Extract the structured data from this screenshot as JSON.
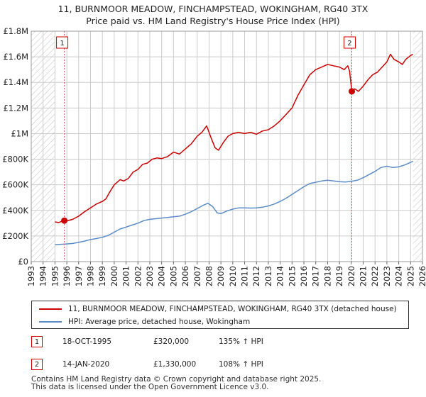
{
  "title_line1": "11, BURNMOOR MEADOW, FINCHAMPSTEAD, WOKINGHAM, RG40 3TX",
  "title_line2": "Price paid vs. HM Land Registry's House Price Index (HPI)",
  "colors": {
    "property": "#cc0000",
    "hpi": "#5b8cc8",
    "grid": "#cccccc",
    "hatch": "#c8c8c8",
    "marker_line": "#e06060"
  },
  "chart_data": {
    "type": "line",
    "title": "11, BURNMOOR MEADOW, FINCHAMPSTEAD, WOKINGHAM, RG40 3TX — Price paid vs. HM Land Registry's House Price Index (HPI)",
    "xlim": [
      1993,
      2026
    ],
    "ylim": [
      0,
      1800000
    ],
    "y_ticks": [
      {
        "v": 0,
        "label": "£0"
      },
      {
        "v": 200000,
        "label": "£200K"
      },
      {
        "v": 400000,
        "label": "£400K"
      },
      {
        "v": 600000,
        "label": "£600K"
      },
      {
        "v": 800000,
        "label": "£800K"
      },
      {
        "v": 1000000,
        "label": "£1M"
      },
      {
        "v": 1200000,
        "label": "£1.2M"
      },
      {
        "v": 1400000,
        "label": "£1.4M"
      },
      {
        "v": 1600000,
        "label": "£1.6M"
      },
      {
        "v": 1800000,
        "label": "£1.8M"
      }
    ],
    "x_ticks": [
      1993,
      1994,
      1995,
      1996,
      1997,
      1998,
      1999,
      2000,
      2001,
      2002,
      2003,
      2004,
      2005,
      2006,
      2007,
      2008,
      2009,
      2010,
      2011,
      2012,
      2013,
      2014,
      2015,
      2016,
      2017,
      2018,
      2019,
      2020,
      2021,
      2022,
      2023,
      2024,
      2025,
      2026
    ],
    "data_range": [
      1995.0,
      2025.2
    ],
    "series": [
      {
        "name": "11, BURNMOOR MEADOW, FINCHAMPSTEAD, WOKINGHAM, RG40 3TX (detached house)",
        "color": "#cc0000",
        "points": [
          [
            1995.0,
            310000
          ],
          [
            1995.3,
            305000
          ],
          [
            1995.6,
            315000
          ],
          [
            1995.79,
            320000
          ],
          [
            1996.0,
            318000
          ],
          [
            1996.5,
            330000
          ],
          [
            1997.0,
            355000
          ],
          [
            1997.5,
            390000
          ],
          [
            1998.0,
            420000
          ],
          [
            1998.5,
            450000
          ],
          [
            1999.0,
            470000
          ],
          [
            1999.3,
            490000
          ],
          [
            1999.6,
            540000
          ],
          [
            2000.0,
            600000
          ],
          [
            2000.5,
            640000
          ],
          [
            2000.8,
            630000
          ],
          [
            2001.2,
            650000
          ],
          [
            2001.6,
            700000
          ],
          [
            2002.0,
            720000
          ],
          [
            2002.4,
            760000
          ],
          [
            2002.8,
            770000
          ],
          [
            2003.2,
            800000
          ],
          [
            2003.6,
            810000
          ],
          [
            2004.0,
            805000
          ],
          [
            2004.5,
            820000
          ],
          [
            2005.0,
            855000
          ],
          [
            2005.5,
            840000
          ],
          [
            2006.0,
            880000
          ],
          [
            2006.5,
            920000
          ],
          [
            2007.0,
            980000
          ],
          [
            2007.4,
            1010000
          ],
          [
            2007.8,
            1060000
          ],
          [
            2008.2,
            960000
          ],
          [
            2008.5,
            890000
          ],
          [
            2008.8,
            870000
          ],
          [
            2009.2,
            930000
          ],
          [
            2009.6,
            980000
          ],
          [
            2010.0,
            1000000
          ],
          [
            2010.5,
            1010000
          ],
          [
            2011.0,
            1000000
          ],
          [
            2011.5,
            1010000
          ],
          [
            2012.0,
            995000
          ],
          [
            2012.5,
            1020000
          ],
          [
            2013.0,
            1030000
          ],
          [
            2013.5,
            1060000
          ],
          [
            2014.0,
            1100000
          ],
          [
            2014.5,
            1150000
          ],
          [
            2015.0,
            1200000
          ],
          [
            2015.5,
            1300000
          ],
          [
            2016.0,
            1380000
          ],
          [
            2016.5,
            1460000
          ],
          [
            2017.0,
            1500000
          ],
          [
            2017.5,
            1520000
          ],
          [
            2018.0,
            1540000
          ],
          [
            2018.5,
            1530000
          ],
          [
            2019.0,
            1520000
          ],
          [
            2019.4,
            1500000
          ],
          [
            2019.7,
            1530000
          ],
          [
            2019.85,
            1490000
          ],
          [
            2020.04,
            1330000
          ],
          [
            2020.3,
            1350000
          ],
          [
            2020.6,
            1330000
          ],
          [
            2021.0,
            1370000
          ],
          [
            2021.4,
            1420000
          ],
          [
            2021.8,
            1460000
          ],
          [
            2022.2,
            1480000
          ],
          [
            2022.6,
            1520000
          ],
          [
            2023.0,
            1560000
          ],
          [
            2023.3,
            1620000
          ],
          [
            2023.6,
            1580000
          ],
          [
            2024.0,
            1560000
          ],
          [
            2024.3,
            1540000
          ],
          [
            2024.6,
            1580000
          ],
          [
            2025.0,
            1610000
          ],
          [
            2025.2,
            1620000
          ]
        ]
      },
      {
        "name": "HPI: Average price, detached house, Wokingham",
        "color": "#5b8cc8",
        "points": [
          [
            1995.0,
            132000
          ],
          [
            1995.5,
            135000
          ],
          [
            1996.0,
            138000
          ],
          [
            1996.5,
            142000
          ],
          [
            1997.0,
            150000
          ],
          [
            1997.5,
            160000
          ],
          [
            1998.0,
            172000
          ],
          [
            1998.5,
            180000
          ],
          [
            1999.0,
            190000
          ],
          [
            1999.5,
            205000
          ],
          [
            2000.0,
            230000
          ],
          [
            2000.5,
            255000
          ],
          [
            2001.0,
            270000
          ],
          [
            2001.5,
            285000
          ],
          [
            2002.0,
            300000
          ],
          [
            2002.5,
            320000
          ],
          [
            2003.0,
            330000
          ],
          [
            2003.5,
            335000
          ],
          [
            2004.0,
            340000
          ],
          [
            2004.5,
            345000
          ],
          [
            2005.0,
            350000
          ],
          [
            2005.5,
            355000
          ],
          [
            2006.0,
            370000
          ],
          [
            2006.5,
            390000
          ],
          [
            2007.0,
            415000
          ],
          [
            2007.5,
            440000
          ],
          [
            2007.9,
            455000
          ],
          [
            2008.3,
            430000
          ],
          [
            2008.7,
            380000
          ],
          [
            2009.0,
            375000
          ],
          [
            2009.5,
            395000
          ],
          [
            2010.0,
            410000
          ],
          [
            2010.5,
            420000
          ],
          [
            2011.0,
            420000
          ],
          [
            2011.5,
            418000
          ],
          [
            2012.0,
            420000
          ],
          [
            2012.5,
            425000
          ],
          [
            2013.0,
            435000
          ],
          [
            2013.5,
            450000
          ],
          [
            2014.0,
            470000
          ],
          [
            2014.5,
            495000
          ],
          [
            2015.0,
            525000
          ],
          [
            2015.5,
            555000
          ],
          [
            2016.0,
            585000
          ],
          [
            2016.5,
            610000
          ],
          [
            2017.0,
            620000
          ],
          [
            2017.5,
            630000
          ],
          [
            2018.0,
            635000
          ],
          [
            2018.5,
            630000
          ],
          [
            2019.0,
            625000
          ],
          [
            2019.5,
            622000
          ],
          [
            2020.04,
            628000
          ],
          [
            2020.5,
            635000
          ],
          [
            2021.0,
            655000
          ],
          [
            2021.5,
            680000
          ],
          [
            2022.0,
            705000
          ],
          [
            2022.5,
            735000
          ],
          [
            2023.0,
            745000
          ],
          [
            2023.5,
            735000
          ],
          [
            2024.0,
            740000
          ],
          [
            2024.5,
            755000
          ],
          [
            2025.0,
            775000
          ],
          [
            2025.2,
            785000
          ]
        ]
      }
    ],
    "sales": [
      {
        "label": "1",
        "x": 1995.79,
        "y": 320000
      },
      {
        "label": "2",
        "x": 2020.04,
        "y": 1330000
      }
    ]
  },
  "legend": {
    "property_label": "11, BURNMOOR MEADOW, FINCHAMPSTEAD, WOKINGHAM, RG40 3TX (detached house)",
    "hpi_label": "HPI: Average price, detached house, Wokingham"
  },
  "annotations": [
    {
      "label": "1",
      "date": "18-OCT-1995",
      "price": "£320,000",
      "hpi": "135% ↑ HPI"
    },
    {
      "label": "2",
      "date": "14-JAN-2020",
      "price": "£1,330,000",
      "hpi": "108% ↑ HPI"
    }
  ],
  "footer_line1": "Contains HM Land Registry data © Crown copyright and database right 2025.",
  "footer_line2": "This data is licensed under the Open Government Licence v3.0."
}
